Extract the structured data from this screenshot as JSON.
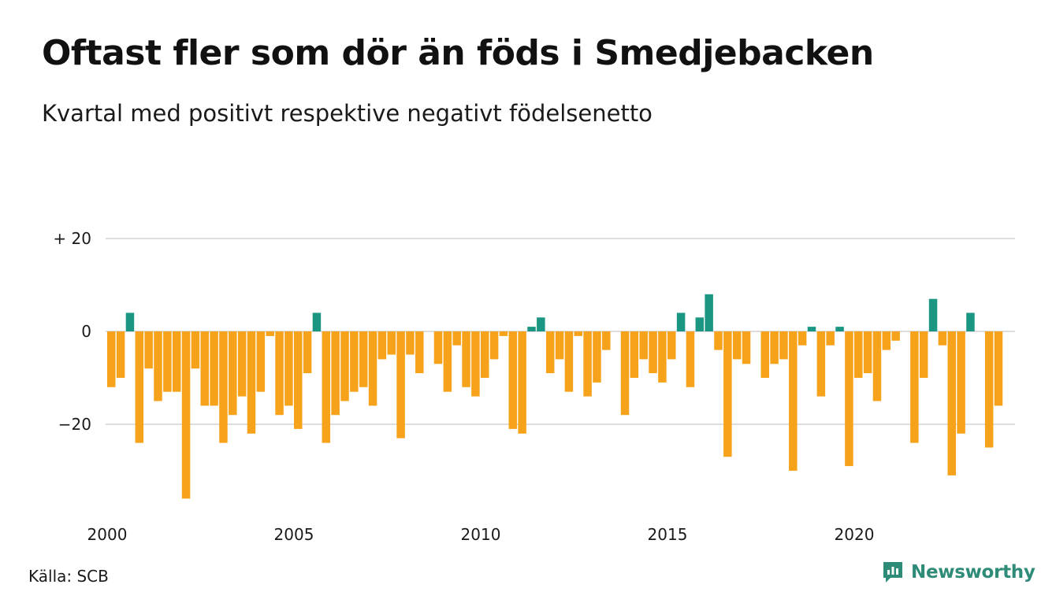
{
  "title": "Oftast fler som dör än föds i Smedjebacken",
  "subtitle": "Kvartal med positivt respektive negativt födelsenetto",
  "source": "Källa: SCB",
  "brand": "Newsworthy",
  "colors": {
    "positive": "#1a9683",
    "negative": "#f6a21b",
    "gridline": "#dddddd",
    "brand": "#2e8b78"
  },
  "chart_data": {
    "type": "bar",
    "title": "Oftast fler som dör än föds i Smedjebacken",
    "subtitle": "Kvartal med positivt respektive negativt födelsenetto",
    "x_start": "2000 Q1",
    "x_tick_labels": [
      "2000",
      "2005",
      "2010",
      "2015",
      "2020"
    ],
    "y_ticks": [
      {
        "value": 20,
        "label": "+ 20"
      },
      {
        "value": 0,
        "label": "0"
      },
      {
        "value": -20,
        "label": "−20"
      }
    ],
    "ylim": [
      -37,
      21
    ],
    "grid": true,
    "values": [
      -12,
      -10,
      4,
      -24,
      -8,
      -15,
      -13,
      -13,
      -36,
      -8,
      -16,
      -16,
      -24,
      -18,
      -14,
      -22,
      -13,
      -1,
      -18,
      -16,
      -21,
      -9,
      4,
      -24,
      -18,
      -15,
      -13,
      -12,
      -16,
      -6,
      -5,
      -23,
      -5,
      -9,
      0,
      -7,
      -13,
      -3,
      -12,
      -14,
      -10,
      -6,
      -1,
      -21,
      -22,
      1,
      3,
      -9,
      -6,
      -13,
      -1,
      -14,
      -11,
      -4,
      0,
      -18,
      -10,
      -6,
      -9,
      -11,
      -6,
      4,
      -12,
      3,
      8,
      -4,
      -27,
      -6,
      -7,
      0,
      -10,
      -7,
      -6,
      -30,
      -3,
      1,
      -14,
      -3,
      1,
      -29,
      -10,
      -9,
      -15,
      -4,
      -2,
      0,
      -24,
      -10,
      7,
      -3,
      -31,
      -22,
      4,
      0,
      -25,
      -16
    ]
  }
}
